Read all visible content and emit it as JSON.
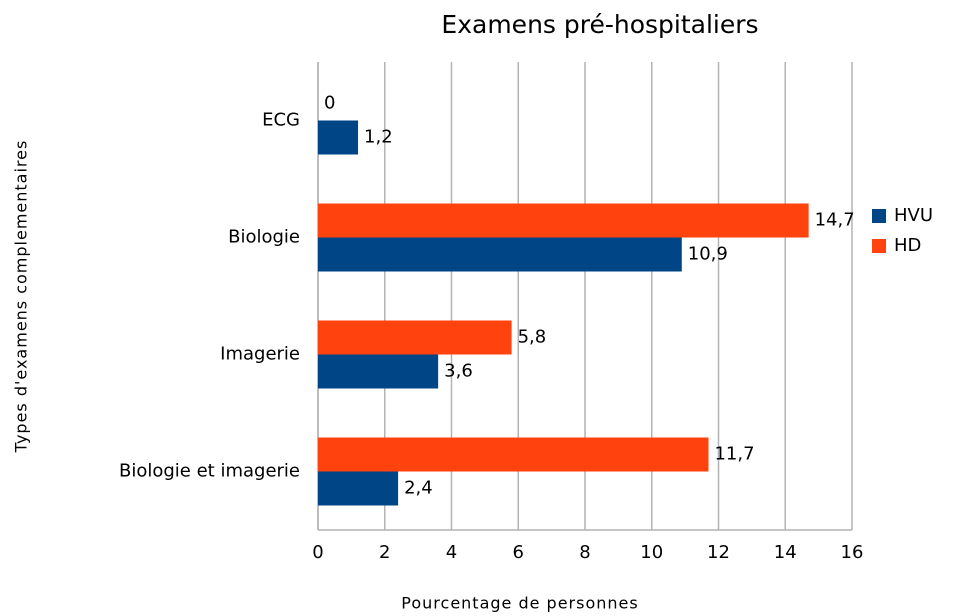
{
  "chart_data": {
    "type": "hbar",
    "title": "Examens pré-hospitaliers",
    "xlabel": "Pourcentage de personnes",
    "ylabel": "Types d'examens complementaires",
    "categories": [
      "ECG",
      "Biologie",
      "Imagerie",
      "Biologie et imagerie"
    ],
    "series": [
      {
        "name": "HVU",
        "color": "#004586",
        "values": [
          1.2,
          10.9,
          3.6,
          2.4
        ],
        "value_labels": [
          "1,2",
          "10,9",
          "3,6",
          "2,4"
        ]
      },
      {
        "name": "HD",
        "color": "#ff420e",
        "values": [
          0,
          14.7,
          5.8,
          11.7
        ],
        "value_labels": [
          "0",
          "14,7",
          "5,8",
          "11,7"
        ]
      }
    ],
    "xlim": [
      0,
      16
    ],
    "xticks": [
      0,
      2,
      4,
      6,
      8,
      10,
      12,
      14,
      16
    ],
    "grid": true,
    "legend": "right"
  }
}
